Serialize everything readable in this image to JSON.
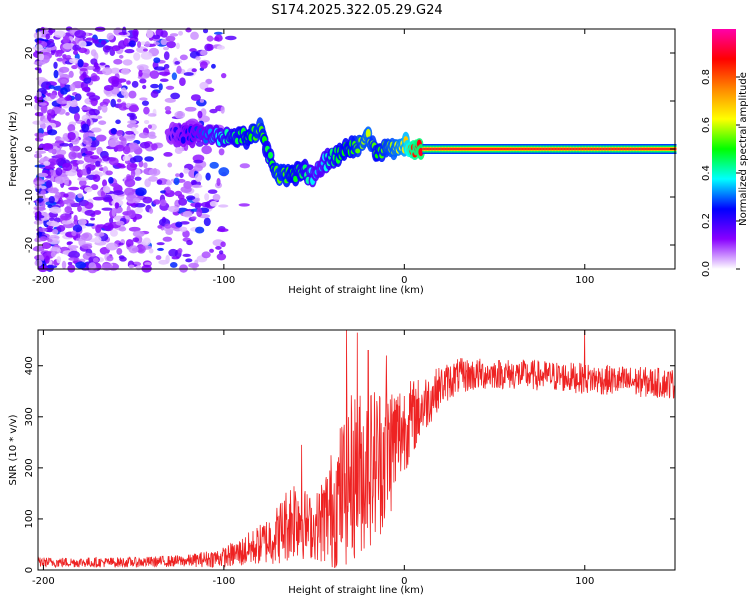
{
  "title": "S174.2025.322.05.29.G24",
  "chart_data": [
    {
      "type": "heatmap",
      "xlabel": "Height of straight line (km)",
      "ylabel": "Frequency (Hz)",
      "xlim": [
        -203,
        150
      ],
      "ylim": [
        -25,
        25
      ],
      "xticks": [
        -200,
        -100,
        0,
        100
      ],
      "yticks": [
        -20,
        -10,
        0,
        10,
        20
      ],
      "colorbar": {
        "label": "Normalized spectral amplitude",
        "range": [
          0,
          1
        ],
        "ticks": [
          0.0,
          0.2,
          0.4,
          0.6,
          0.8
        ],
        "tick_labels": [
          "0.0",
          "0.2",
          "0.4",
          "0.6",
          "0.8"
        ],
        "colormap": [
          "#ffffff",
          "#8800ff",
          "#0000ff",
          "#00ffff",
          "#00ff00",
          "#ffff00",
          "#ff8800",
          "#ff0000",
          "#ff00aa"
        ]
      },
      "trace": {
        "x": [
          -130,
          -110,
          -95,
          -85,
          -80,
          -75,
          -70,
          -62,
          -55,
          -50,
          -45,
          -40,
          -35,
          -30,
          -25,
          -20,
          -15,
          -10,
          -5,
          0,
          5,
          10,
          20,
          150
        ],
        "freq": [
          3,
          3,
          2,
          3,
          4,
          -1,
          -6,
          -5,
          -5,
          -6,
          -3,
          -2,
          -1,
          0,
          1,
          2,
          -1,
          0,
          0,
          1,
          0,
          0,
          0,
          0
        ],
        "amplitude": [
          0.2,
          0.3,
          0.45,
          0.5,
          0.55,
          0.45,
          0.55,
          0.5,
          0.45,
          0.35,
          0.35,
          0.45,
          0.5,
          0.5,
          0.55,
          0.6,
          0.5,
          0.55,
          0.6,
          0.65,
          0.85,
          0.9,
          0.9,
          0.9
        ]
      },
      "noise_extent": {
        "x_from": -203,
        "x_to": -100,
        "level": "high, purple speckle"
      }
    },
    {
      "type": "line",
      "xlabel": "Height of straight line (km)",
      "ylabel": "SNR (10 * v/v)",
      "xlim": [
        -203,
        150
      ],
      "ylim": [
        0,
        470
      ],
      "xticks": [
        -200,
        -100,
        0,
        100
      ],
      "yticks": [
        0,
        100,
        200,
        300,
        400
      ],
      "color": "#ee2222",
      "series": [
        {
          "name": "SNR",
          "envelope_x": [
            -203,
            -150,
            -120,
            -100,
            -90,
            -80,
            -70,
            -60,
            -55,
            -50,
            -40,
            -30,
            -20,
            -10,
            0,
            10,
            20,
            30,
            50,
            80,
            100,
            120,
            150
          ],
          "envelope_mean": [
            15,
            15,
            18,
            25,
            35,
            50,
            70,
            110,
            90,
            80,
            120,
            180,
            200,
            230,
            280,
            320,
            360,
            380,
            385,
            380,
            375,
            370,
            365
          ],
          "envelope_spread": [
            10,
            10,
            12,
            20,
            30,
            40,
            60,
            90,
            70,
            60,
            120,
            170,
            160,
            150,
            90,
            60,
            40,
            35,
            30,
            30,
            30,
            30,
            30
          ],
          "spikes": [
            {
              "x": -57,
              "y": 245
            },
            {
              "x": -32,
              "y": 470
            },
            {
              "x": -26,
              "y": 465
            },
            {
              "x": -20,
              "y": 430
            },
            {
              "x": -10,
              "y": 420
            },
            {
              "x": 100,
              "y": 470
            }
          ]
        }
      ]
    }
  ]
}
